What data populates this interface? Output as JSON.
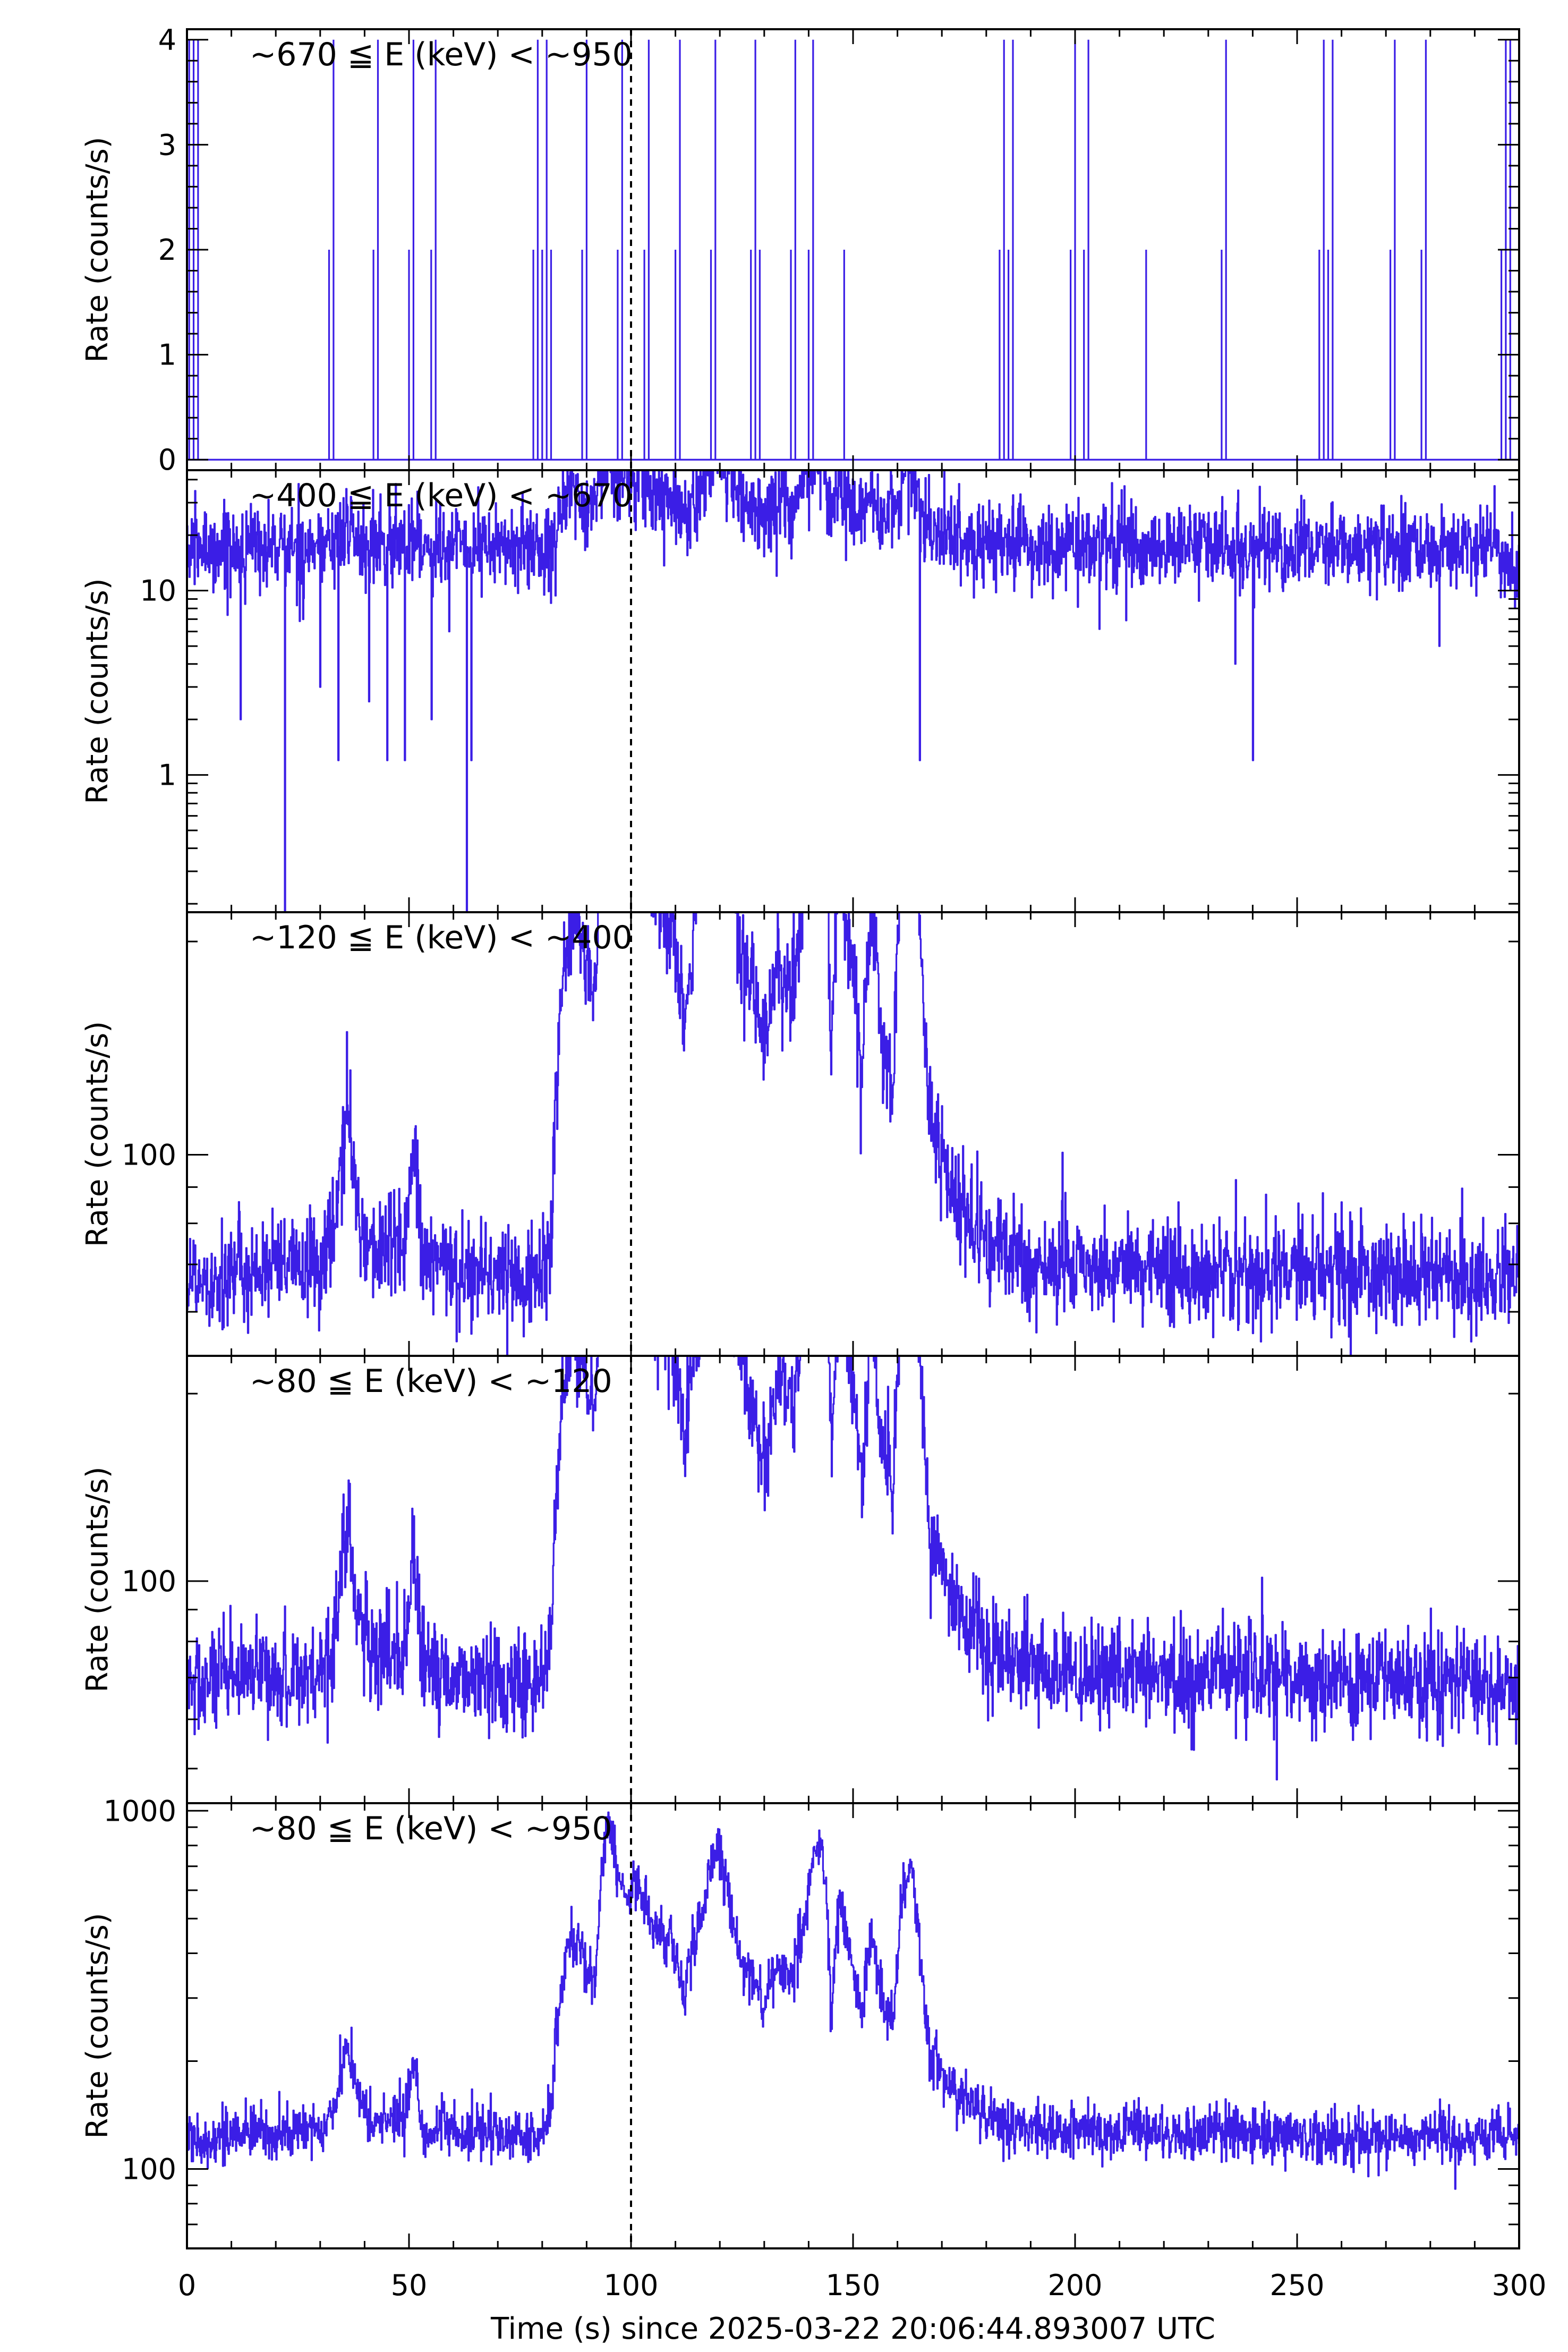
{
  "chart_data": {
    "type": "line",
    "line_color": "#3b1ee6",
    "xlabel": "Time (s) since 2025-03-22 20:06:44.893007 UTC",
    "xlim": [
      0,
      300
    ],
    "x_ticks": [
      "0",
      "50",
      "100",
      "150",
      "200",
      "250",
      "300"
    ],
    "x_tick_values": [
      0,
      50,
      100,
      150,
      200,
      250,
      300
    ],
    "reference_line_x": 100,
    "grid": false,
    "panels": [
      {
        "label": "~670 ≦ E (keV) < ~950",
        "ylabel": "Rate (counts/s)",
        "yscale": "linear",
        "ylim": [
          -0.1,
          4.1
        ],
        "y_ticks": [
          "0",
          "1",
          "2",
          "3",
          "4"
        ],
        "y_tick_values": [
          0,
          1,
          2,
          3,
          4
        ],
        "model": {
          "base": 0,
          "sparse": true
        },
        "spikes": [
          {
            "t": 0.5,
            "v": 4
          },
          {
            "t": 1.5,
            "v": 4
          },
          {
            "t": 2.5,
            "v": 4
          },
          {
            "t": 32,
            "v": 2
          },
          {
            "t": 33,
            "v": 4
          },
          {
            "t": 42,
            "v": 2
          },
          {
            "t": 43,
            "v": 4
          },
          {
            "t": 50,
            "v": 2
          },
          {
            "t": 51,
            "v": 4
          },
          {
            "t": 55,
            "v": 2
          },
          {
            "t": 56,
            "v": 4
          },
          {
            "t": 78,
            "v": 2
          },
          {
            "t": 79,
            "v": 4
          },
          {
            "t": 80,
            "v": 2
          },
          {
            "t": 81,
            "v": 4
          },
          {
            "t": 82,
            "v": 2
          },
          {
            "t": 89,
            "v": 2
          },
          {
            "t": 90,
            "v": 4
          },
          {
            "t": 97,
            "v": 2
          },
          {
            "t": 98,
            "v": 4
          },
          {
            "t": 103,
            "v": 2
          },
          {
            "t": 104,
            "v": 4
          },
          {
            "t": 110,
            "v": 2
          },
          {
            "t": 111,
            "v": 4
          },
          {
            "t": 118,
            "v": 2
          },
          {
            "t": 119,
            "v": 4
          },
          {
            "t": 127,
            "v": 2
          },
          {
            "t": 128,
            "v": 4
          },
          {
            "t": 129,
            "v": 2
          },
          {
            "t": 136,
            "v": 2
          },
          {
            "t": 137,
            "v": 4
          },
          {
            "t": 140,
            "v": 2
          },
          {
            "t": 141,
            "v": 4
          },
          {
            "t": 148,
            "v": 2
          },
          {
            "t": 183,
            "v": 2
          },
          {
            "t": 184,
            "v": 4
          },
          {
            "t": 185,
            "v": 2
          },
          {
            "t": 186,
            "v": 4
          },
          {
            "t": 199,
            "v": 2
          },
          {
            "t": 200,
            "v": 4
          },
          {
            "t": 202,
            "v": 2
          },
          {
            "t": 203,
            "v": 4
          },
          {
            "t": 216,
            "v": 2
          },
          {
            "t": 233,
            "v": 2
          },
          {
            "t": 234,
            "v": 4
          },
          {
            "t": 255,
            "v": 2
          },
          {
            "t": 256,
            "v": 4
          },
          {
            "t": 257,
            "v": 2
          },
          {
            "t": 258,
            "v": 4
          },
          {
            "t": 271,
            "v": 2
          },
          {
            "t": 272,
            "v": 4
          },
          {
            "t": 278,
            "v": 2
          },
          {
            "t": 279,
            "v": 4
          },
          {
            "t": 296,
            "v": 2
          },
          {
            "t": 297,
            "v": 4
          },
          {
            "t": 298,
            "v": 4
          }
        ]
      },
      {
        "label": "~400 ≦ E (keV) < ~670",
        "ylabel": "Rate (counts/s)",
        "yscale": "log",
        "ylim": [
          0.18,
          45
        ],
        "y_ticks": [
          "1",
          "10"
        ],
        "y_tick_values": [
          1,
          10
        ],
        "model": {
          "base": 17,
          "noise": 0.28,
          "burst_gain": 0.35
        },
        "dips": [
          {
            "t": 12,
            "v": 2
          },
          {
            "t": 22,
            "v": 0.18
          },
          {
            "t": 30,
            "v": 3
          },
          {
            "t": 34,
            "v": 1.2
          },
          {
            "t": 41,
            "v": 2.5
          },
          {
            "t": 45,
            "v": 1.2
          },
          {
            "t": 49,
            "v": 1.2
          },
          {
            "t": 55,
            "v": 2
          },
          {
            "t": 59,
            "v": 6
          },
          {
            "t": 63,
            "v": 0.18
          },
          {
            "t": 64,
            "v": 1.2
          },
          {
            "t": 165,
            "v": 1.2
          },
          {
            "t": 236,
            "v": 4
          },
          {
            "t": 240,
            "v": 1.2
          },
          {
            "t": 282,
            "v": 5
          }
        ]
      },
      {
        "label": "~120 ≦ E (keV) < ~400",
        "ylabel": "Rate (counts/s)",
        "yscale": "log",
        "ylim": [
          52,
          220
        ],
        "y_ticks": [
          "100"
        ],
        "y_tick_values": [
          100
        ],
        "model": {
          "base": 67,
          "noise": 0.09,
          "burst_gain": 0.85
        }
      },
      {
        "label": "~80 ≦ E (keV) < ~120",
        "ylabel": "Rate (counts/s)",
        "yscale": "log",
        "ylim": [
          44,
          230
        ],
        "y_ticks": [
          "100"
        ],
        "y_tick_values": [
          100
        ],
        "model": {
          "base": 68,
          "noise": 0.1,
          "burst_gain": 1.0
        }
      },
      {
        "label": "~80 ≦ E (keV) < ~950",
        "ylabel": "Rate (counts/s)",
        "yscale": "log",
        "ylim": [
          60,
          1050
        ],
        "y_ticks": [
          "100",
          "1000"
        ],
        "y_tick_values": [
          100,
          1000
        ],
        "model": {
          "base": 122,
          "noise": 0.09,
          "burst_gain": 1.0
        }
      }
    ],
    "burst_profile": [
      {
        "t": 0,
        "f": 1.0
      },
      {
        "t": 30,
        "f": 1.05
      },
      {
        "t": 33,
        "f": 1.2
      },
      {
        "t": 35,
        "f": 1.55
      },
      {
        "t": 36,
        "f": 1.9
      },
      {
        "t": 38,
        "f": 1.35
      },
      {
        "t": 41,
        "f": 1.1
      },
      {
        "t": 49,
        "f": 1.15
      },
      {
        "t": 51,
        "f": 1.6
      },
      {
        "t": 53,
        "f": 1.05
      },
      {
        "t": 80,
        "f": 1.0
      },
      {
        "t": 82,
        "f": 1.2
      },
      {
        "t": 84,
        "f": 2.6
      },
      {
        "t": 86,
        "f": 3.4
      },
      {
        "t": 88,
        "f": 3.6
      },
      {
        "t": 90,
        "f": 3.0
      },
      {
        "t": 92,
        "f": 2.7
      },
      {
        "t": 94,
        "f": 6.5
      },
      {
        "t": 95,
        "f": 8.0
      },
      {
        "t": 97,
        "f": 5.2
      },
      {
        "t": 99,
        "f": 4.8
      },
      {
        "t": 101,
        "f": 5.3
      },
      {
        "t": 103,
        "f": 4.5
      },
      {
        "t": 106,
        "f": 3.8
      },
      {
        "t": 109,
        "f": 3.6
      },
      {
        "t": 112,
        "f": 2.4
      },
      {
        "t": 114,
        "f": 3.4
      },
      {
        "t": 117,
        "f": 4.8
      },
      {
        "t": 119,
        "f": 6.4
      },
      {
        "t": 121,
        "f": 5.5
      },
      {
        "t": 124,
        "f": 3.4
      },
      {
        "t": 127,
        "f": 2.8
      },
      {
        "t": 130,
        "f": 2.3
      },
      {
        "t": 133,
        "f": 3.1
      },
      {
        "t": 136,
        "f": 2.7
      },
      {
        "t": 139,
        "f": 3.9
      },
      {
        "t": 141,
        "f": 6.2
      },
      {
        "t": 143,
        "f": 6.6
      },
      {
        "t": 145,
        "f": 2.1
      },
      {
        "t": 147,
        "f": 4.6
      },
      {
        "t": 149,
        "f": 3.3
      },
      {
        "t": 152,
        "f": 2.1
      },
      {
        "t": 154,
        "f": 3.7
      },
      {
        "t": 156,
        "f": 2.5
      },
      {
        "t": 159,
        "f": 2.0
      },
      {
        "t": 161,
        "f": 4.6
      },
      {
        "t": 163,
        "f": 5.8
      },
      {
        "t": 165,
        "f": 3.2
      },
      {
        "t": 167,
        "f": 1.8
      },
      {
        "t": 172,
        "f": 1.35
      },
      {
        "t": 180,
        "f": 1.15
      },
      {
        "t": 190,
        "f": 1.05
      },
      {
        "t": 300,
        "f": 1.0
      }
    ]
  }
}
